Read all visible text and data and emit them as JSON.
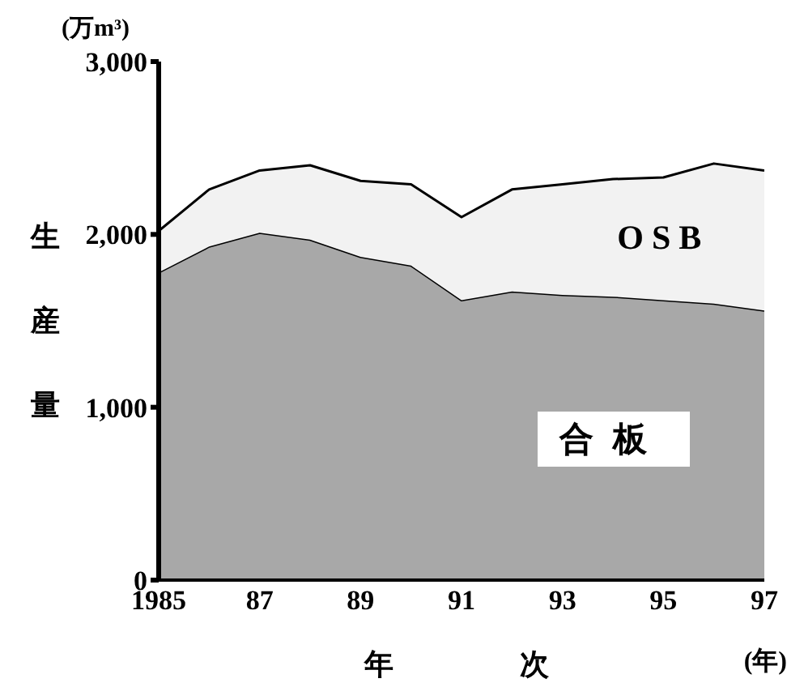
{
  "chart_data": {
    "type": "area",
    "stacked": true,
    "ylabel": "生産量",
    "xlabel": "年　次",
    "annotations": [
      "(万m³)",
      "(年)"
    ],
    "x": [
      1985,
      1986,
      1987,
      1988,
      1989,
      1990,
      1991,
      1992,
      1993,
      1994,
      1995,
      1996,
      1997
    ],
    "series": [
      {
        "name": "合板",
        "color": "#a8a8a8",
        "values": [
          1780,
          1930,
          2010,
          1970,
          1870,
          1820,
          1620,
          1670,
          1650,
          1640,
          1620,
          1600,
          1560
        ]
      },
      {
        "name": "OSB",
        "color": "#f2f2f2",
        "values": [
          240,
          330,
          360,
          430,
          440,
          470,
          480,
          590,
          640,
          680,
          710,
          810,
          810
        ]
      }
    ],
    "xlim": [
      1985,
      1997
    ],
    "xticks": [
      1985,
      {
        "value": 1987,
        "label": "87"
      },
      {
        "value": 1989,
        "label": "89"
      },
      {
        "value": 1991,
        "label": "91"
      },
      {
        "value": 1993,
        "label": "93"
      },
      {
        "value": 1995,
        "label": "95"
      },
      {
        "value": 1997,
        "label": "97"
      }
    ],
    "ylim": [
      0,
      3000
    ],
    "yticks": [
      0,
      {
        "value": 1000,
        "label": "1,000"
      },
      {
        "value": 2000,
        "label": "2,000"
      },
      {
        "value": 3000,
        "label": "3,000"
      }
    ],
    "grid": false,
    "legend": false,
    "marker": "none"
  }
}
